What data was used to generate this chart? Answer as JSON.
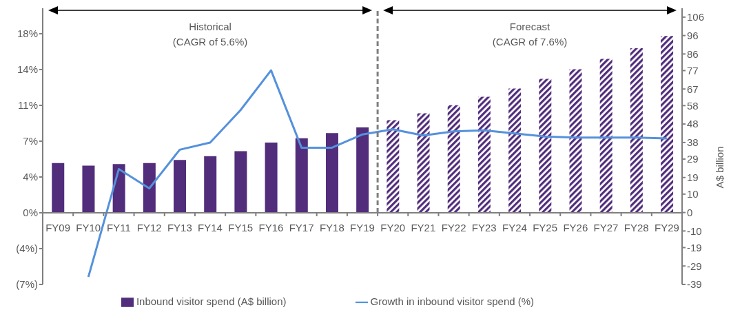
{
  "chart_data": {
    "type": "bar",
    "stacked": true,
    "categories": [
      "FY09",
      "FY10",
      "FY11",
      "FY12",
      "FY13",
      "FY14",
      "FY15",
      "FY16",
      "FY17",
      "FY18",
      "FY19",
      "FY20",
      "FY21",
      "FY22",
      "FY23",
      "FY24",
      "FY25",
      "FY26",
      "FY27",
      "FY28",
      "FY29"
    ],
    "series": [
      {
        "name": "Inbound visitor spend (A$ billion)",
        "axis": "y2",
        "color": "#512d7c",
        "values": [
          26.8,
          25.4,
          26.3,
          26.8,
          28.5,
          30.6,
          33.3,
          38.0,
          40.3,
          43.1,
          46.2,
          null,
          null,
          null,
          null,
          null,
          null,
          null,
          null,
          null,
          null
        ]
      },
      {
        "axis": "y2",
        "color": "#512d7c",
        "values": [
          null,
          null,
          null,
          null,
          null,
          null,
          null,
          null,
          null,
          null,
          null,
          50.1,
          53.8,
          58.2,
          62.8,
          67.3,
          72.5,
          77.7,
          83.3,
          89.1,
          95.8
        ]
      },
      {
        "name": "Growth in inbound visitor spend (%)",
        "type": "line",
        "color": "#5591dc",
        "values": [
          null,
          -6.3,
          4.3,
          2.4,
          6.2,
          6.9,
          10.1,
          14.0,
          6.4,
          6.4,
          7.7,
          8.2,
          7.6,
          8.0,
          8.1,
          7.8,
          7.5,
          7.4,
          7.4,
          7.4,
          7.3
        ]
      }
    ],
    "ylim": [
      -7.04,
      20.1
    ],
    "yticks": [
      {
        "value": -7.04,
        "label": "(7%)"
      },
      {
        "value": -3.52,
        "label": "(4%)"
      },
      {
        "value": 0,
        "label": "0%"
      },
      {
        "value": 3.52,
        "label": "4%"
      },
      {
        "value": 7.04,
        "label": "7%"
      },
      {
        "value": 10.56,
        "label": "11%"
      },
      {
        "value": 14.08,
        "label": "14%"
      },
      {
        "value": 17.6,
        "label": "18%"
      }
    ],
    "y2lim": [
      -39,
      110.8
    ],
    "y2ticks": [
      -39,
      -29,
      -19,
      -10,
      0,
      10,
      19,
      29,
      38,
      48,
      58,
      67,
      77,
      86,
      96,
      106
    ],
    "y2label": "A$ billion",
    "annotations": [
      "Historical\n(CAGR of 5.6%)",
      "Forecast\n(CAGR of 7.6%)"
    ],
    "legend": "bottom"
  }
}
